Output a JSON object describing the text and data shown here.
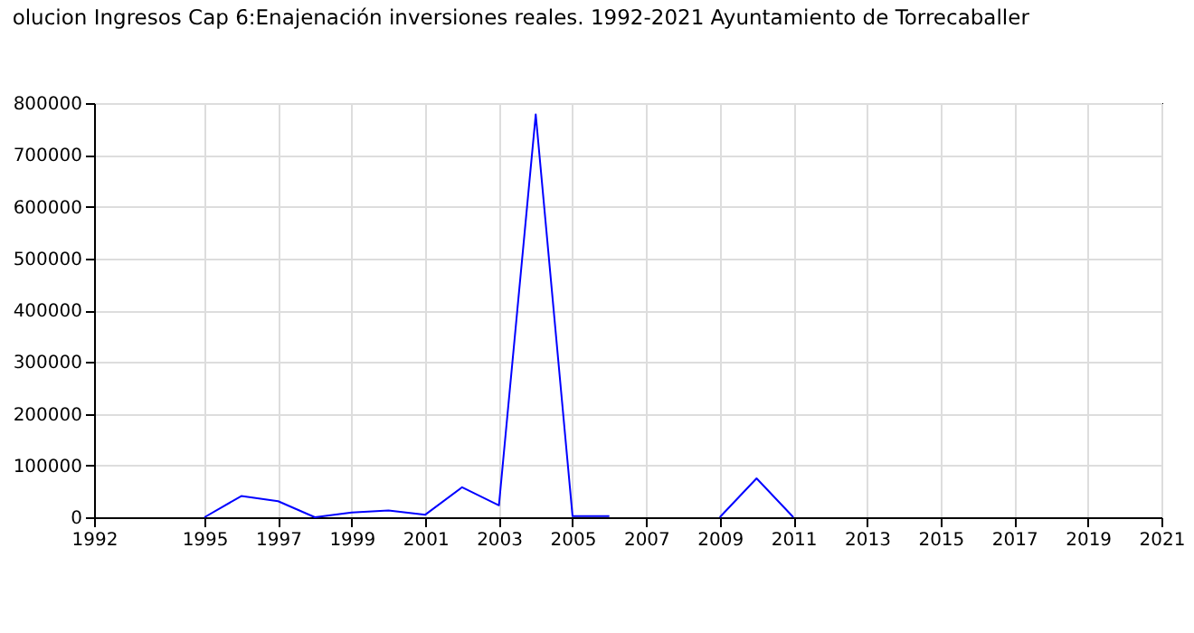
{
  "chart_data": {
    "type": "line",
    "title": "olucion Ingresos Cap 6:Enajenación inversiones reales. 1992-2021 Ayuntamiento de Torrecaballer",
    "x": [
      1995,
      1996,
      1997,
      1998,
      1999,
      2000,
      2001,
      2002,
      2003,
      2004,
      2005,
      2006,
      2007,
      2008,
      2009,
      2010,
      2011
    ],
    "series": [
      {
        "color": "#0000ff",
        "values": [
          0,
          41000,
          31000,
          0,
          9000,
          13000,
          5000,
          58000,
          23000,
          778000,
          2000,
          2000,
          null,
          null,
          0,
          75000,
          0
        ]
      }
    ],
    "xlim": [
      1992,
      2021
    ],
    "xticks": [
      1992,
      1995,
      1997,
      1999,
      2001,
      2003,
      2005,
      2007,
      2009,
      2011,
      2013,
      2015,
      2017,
      2019,
      2021
    ],
    "ylim": [
      0,
      800000
    ],
    "yticks": [
      0,
      100000,
      200000,
      300000,
      400000,
      500000,
      600000,
      700000,
      800000
    ],
    "grid": true,
    "marker": "none",
    "line_style": "solid"
  }
}
